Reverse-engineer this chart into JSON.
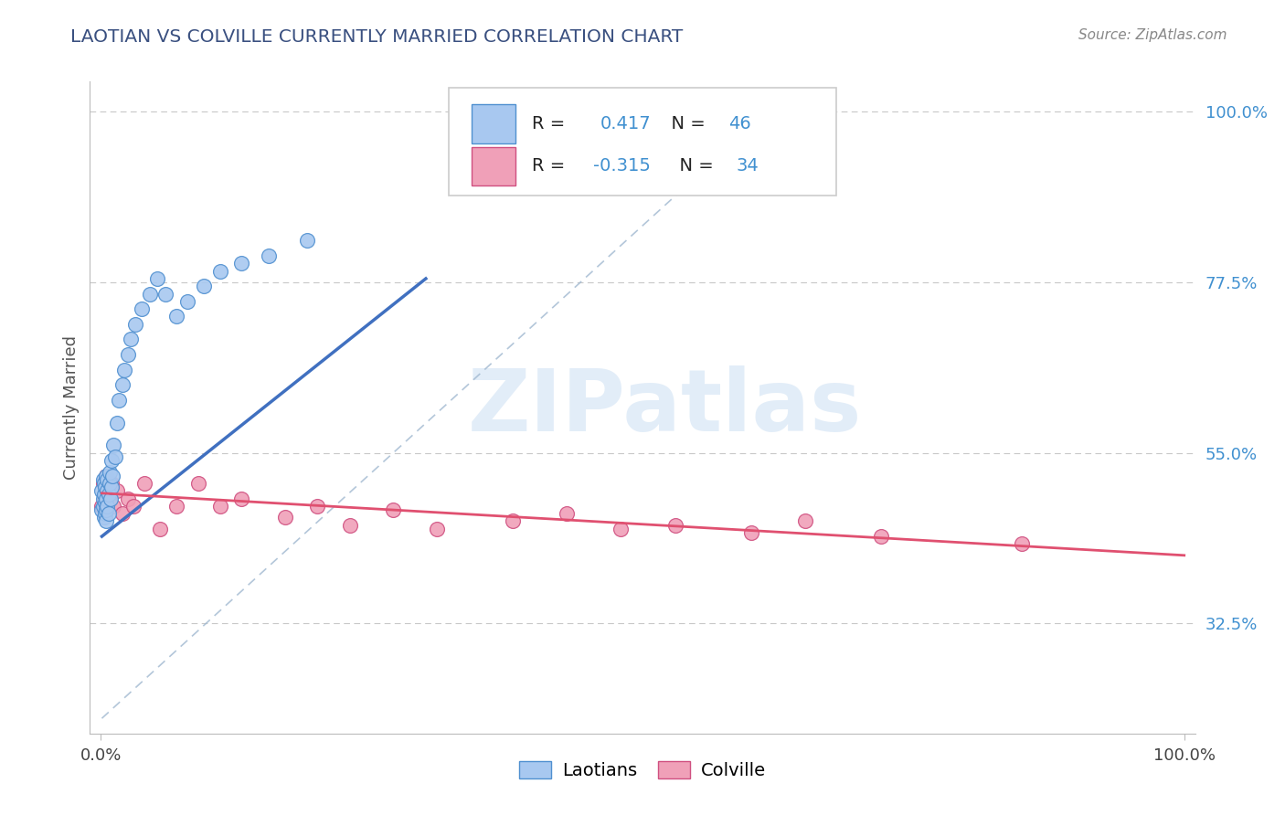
{
  "title": "LAOTIAN VS COLVILLE CURRENTLY MARRIED CORRELATION CHART",
  "source": "Source: ZipAtlas.com",
  "ylabel": "Currently Married",
  "xlim": [
    -0.01,
    1.01
  ],
  "ylim": [
    0.18,
    1.04
  ],
  "yticks": [
    0.325,
    0.55,
    0.775,
    1.0
  ],
  "ytick_labels": [
    "32.5%",
    "55.0%",
    "77.5%",
    "100.0%"
  ],
  "xtick_positions": [
    0.0,
    1.0
  ],
  "xtick_labels": [
    "0.0%",
    "100.0%"
  ],
  "blue_R": "0.417",
  "blue_N": "46",
  "pink_R": "-0.315",
  "pink_N": "34",
  "blue_fill": "#A8C8F0",
  "blue_edge": "#5090D0",
  "pink_fill": "#F0A0B8",
  "pink_edge": "#D05080",
  "blue_line_color": "#4070C0",
  "pink_line_color": "#E05070",
  "ref_line_color": "#A0B8D0",
  "grid_color": "#C8C8C8",
  "title_color": "#3A5080",
  "source_color": "#888888",
  "right_axis_color": "#4090D0",
  "watermark_color": "#C0D8F0",
  "legend_labels": [
    "Laotians",
    "Colville"
  ],
  "blue_x": [
    0.001,
    0.001,
    0.002,
    0.002,
    0.002,
    0.003,
    0.003,
    0.003,
    0.004,
    0.004,
    0.004,
    0.005,
    0.005,
    0.005,
    0.005,
    0.006,
    0.006,
    0.006,
    0.007,
    0.007,
    0.008,
    0.008,
    0.009,
    0.01,
    0.01,
    0.011,
    0.012,
    0.013,
    0.015,
    0.017,
    0.02,
    0.022,
    0.025,
    0.028,
    0.032,
    0.038,
    0.045,
    0.052,
    0.06,
    0.07,
    0.08,
    0.095,
    0.11,
    0.13,
    0.155,
    0.19
  ],
  "blue_y": [
    0.475,
    0.5,
    0.48,
    0.515,
    0.49,
    0.465,
    0.495,
    0.51,
    0.47,
    0.485,
    0.505,
    0.46,
    0.475,
    0.49,
    0.52,
    0.48,
    0.5,
    0.515,
    0.47,
    0.495,
    0.51,
    0.525,
    0.49,
    0.505,
    0.54,
    0.52,
    0.56,
    0.545,
    0.59,
    0.62,
    0.64,
    0.66,
    0.68,
    0.7,
    0.72,
    0.74,
    0.76,
    0.78,
    0.76,
    0.73,
    0.75,
    0.77,
    0.79,
    0.8,
    0.81,
    0.83
  ],
  "pink_x": [
    0.001,
    0.002,
    0.003,
    0.004,
    0.005,
    0.005,
    0.006,
    0.007,
    0.008,
    0.01,
    0.012,
    0.015,
    0.02,
    0.025,
    0.03,
    0.04,
    0.055,
    0.07,
    0.09,
    0.11,
    0.13,
    0.17,
    0.2,
    0.23,
    0.27,
    0.31,
    0.38,
    0.43,
    0.48,
    0.53,
    0.6,
    0.65,
    0.72,
    0.85
  ],
  "pink_y": [
    0.48,
    0.51,
    0.49,
    0.475,
    0.5,
    0.52,
    0.485,
    0.505,
    0.49,
    0.51,
    0.48,
    0.5,
    0.47,
    0.49,
    0.48,
    0.51,
    0.45,
    0.48,
    0.51,
    0.48,
    0.49,
    0.465,
    0.48,
    0.455,
    0.475,
    0.45,
    0.46,
    0.47,
    0.45,
    0.455,
    0.445,
    0.46,
    0.44,
    0.43
  ],
  "blue_line_x": [
    0.001,
    0.3
  ],
  "blue_line_y": [
    0.44,
    0.78
  ],
  "pink_line_x": [
    0.001,
    1.0
  ],
  "pink_line_y": [
    0.497,
    0.415
  ],
  "ref_line_x": [
    0.001,
    0.6
  ],
  "ref_line_y": [
    0.2,
    0.98
  ]
}
